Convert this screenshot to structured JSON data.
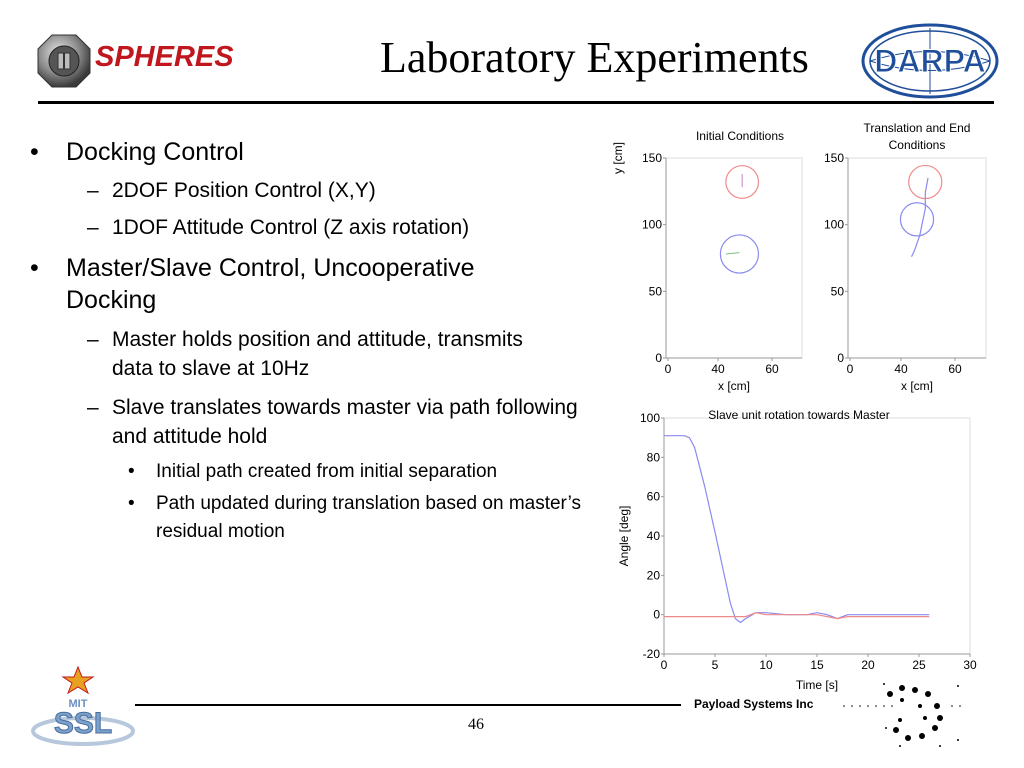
{
  "header": {
    "logo_text": "SPHERES",
    "title": "Laboratory Experiments",
    "partner_logo_text": "DARPA"
  },
  "bullets": [
    {
      "level": 1,
      "text": "Docking Control"
    },
    {
      "level": 2,
      "text": "2DOF Position Control (X,Y)"
    },
    {
      "level": 2,
      "text": "1DOF Attitude Control (Z axis rotation)"
    },
    {
      "level": 1,
      "text": "Master/Slave Control, Uncooperative Docking"
    },
    {
      "level": 2,
      "text": "Master holds position and attitude, transmits data to slave at 10Hz"
    },
    {
      "level": 2,
      "text": "Slave translates towards master via path following and attitude hold"
    },
    {
      "level": 3,
      "text": "Initial path created from initial separation"
    },
    {
      "level": 3,
      "text": "Path updated during translation based on master’s residual motion"
    }
  ],
  "bullet_marks": {
    "level1": "•",
    "level2": "–",
    "level3": "•"
  },
  "footer": {
    "page_number": "46",
    "company": "Payload Systems Inc",
    "lab_logo_text": "SSL",
    "lab_logo_subtext": "MIT"
  },
  "chart_data": [
    {
      "type": "line",
      "title": "Initial Conditions",
      "xlabel": "x [cm]",
      "ylabel": "y [cm]",
      "xlim": [
        20,
        70
      ],
      "ylim": [
        0,
        150
      ],
      "xticks": [
        0,
        40,
        60
      ],
      "yticks": [
        0,
        50,
        100,
        150
      ],
      "circles": [
        {
          "name": "master",
          "cx": 48,
          "cy": 132,
          "r": 6,
          "color": "#f08a8a"
        },
        {
          "name": "slave",
          "cx": 47,
          "cy": 78,
          "r": 7,
          "color": "#8a8af0"
        }
      ],
      "segments": [
        {
          "x": [
            48,
            48
          ],
          "y": [
            128,
            138
          ],
          "color": "#c080c0"
        },
        {
          "x": [
            42,
            47
          ],
          "y": [
            78,
            79
          ],
          "color": "#80c080"
        }
      ]
    },
    {
      "type": "line",
      "title": "Translation and End Conditions",
      "xlabel": "x [cm]",
      "ylabel": "",
      "xlim": [
        20,
        70
      ],
      "ylim": [
        0,
        150
      ],
      "xticks": [
        0,
        40,
        60
      ],
      "yticks": [
        0,
        50,
        100,
        150
      ],
      "circles": [
        {
          "name": "master",
          "cx": 48,
          "cy": 132,
          "r": 6,
          "color": "#f08a8a"
        },
        {
          "name": "slave",
          "cx": 45,
          "cy": 104,
          "r": 6,
          "color": "#8a8af0"
        }
      ],
      "series": [
        {
          "x": [
            43,
            44,
            45,
            46,
            47,
            48,
            48,
            49
          ],
          "y": [
            76,
            80,
            86,
            92,
            102,
            112,
            124,
            135
          ],
          "color": "#8a8af0"
        }
      ]
    },
    {
      "type": "line",
      "title": "Slave unit rotation towards Master",
      "xlabel": "Time [s]",
      "ylabel": "Angle [deg]",
      "xlim": [
        0,
        30
      ],
      "ylim": [
        -20,
        100
      ],
      "xticks": [
        0,
        5,
        10,
        15,
        20,
        25,
        30
      ],
      "yticks": [
        -20,
        0,
        20,
        40,
        60,
        80,
        100
      ],
      "series": [
        {
          "x": [
            0,
            2,
            2.5,
            3,
            4,
            5,
            6,
            6.5,
            7,
            7.5,
            8,
            9,
            10,
            12,
            14,
            15,
            16,
            17,
            18,
            20,
            22,
            24,
            26
          ],
          "y": [
            91,
            91,
            90,
            85,
            65,
            42,
            18,
            6,
            -2,
            -4,
            -2,
            1,
            1,
            0,
            0,
            1,
            0,
            -2,
            0,
            0,
            0,
            0,
            0
          ],
          "color": "#8a8af0"
        },
        {
          "x": [
            0,
            2,
            4,
            6,
            8,
            9,
            10,
            12,
            14,
            15,
            16,
            17,
            18,
            20,
            22,
            24,
            26
          ],
          "y": [
            -1,
            -1,
            -1,
            -1,
            -1,
            1,
            0,
            0,
            0,
            0,
            -1,
            -2,
            -1,
            -1,
            -1,
            -1,
            -1
          ],
          "color": "#f08a8a"
        }
      ]
    }
  ]
}
